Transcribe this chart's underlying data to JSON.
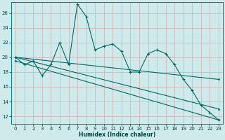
{
  "xlabel": "Humidex (Indice chaleur)",
  "background_color": "#ceeaea",
  "grid_color": "#b8d8d8",
  "line_color": "#006868",
  "ylim": [
    11,
    27.5
  ],
  "xlim": [
    -0.5,
    23.5
  ],
  "yticks": [
    12,
    14,
    16,
    18,
    20,
    22,
    24,
    26
  ],
  "x_ticks": [
    0,
    1,
    2,
    3,
    4,
    5,
    6,
    7,
    8,
    9,
    10,
    11,
    12,
    13,
    14,
    15,
    16,
    17,
    18,
    19,
    20,
    21,
    22,
    23
  ],
  "series1_x": [
    0,
    1,
    2,
    3,
    4,
    5,
    6,
    7,
    8,
    9,
    10,
    11,
    12,
    13,
    14,
    15,
    16,
    17,
    18,
    19,
    20,
    21,
    22,
    23
  ],
  "series1_y": [
    20.0,
    19.0,
    19.5,
    17.5,
    19.0,
    22.0,
    19.0,
    27.2,
    25.5,
    21.0,
    21.5,
    21.8,
    20.8,
    18.0,
    18.0,
    20.5,
    21.0,
    20.5,
    19.0,
    17.0,
    15.5,
    13.5,
    12.5,
    11.5
  ],
  "series2_x": [
    0,
    23
  ],
  "series2_y": [
    20.0,
    17.0
  ],
  "series3_x": [
    0,
    23
  ],
  "series3_y": [
    19.5,
    11.5
  ],
  "series4_x": [
    0,
    23
  ],
  "series4_y": [
    20.0,
    13.0
  ]
}
